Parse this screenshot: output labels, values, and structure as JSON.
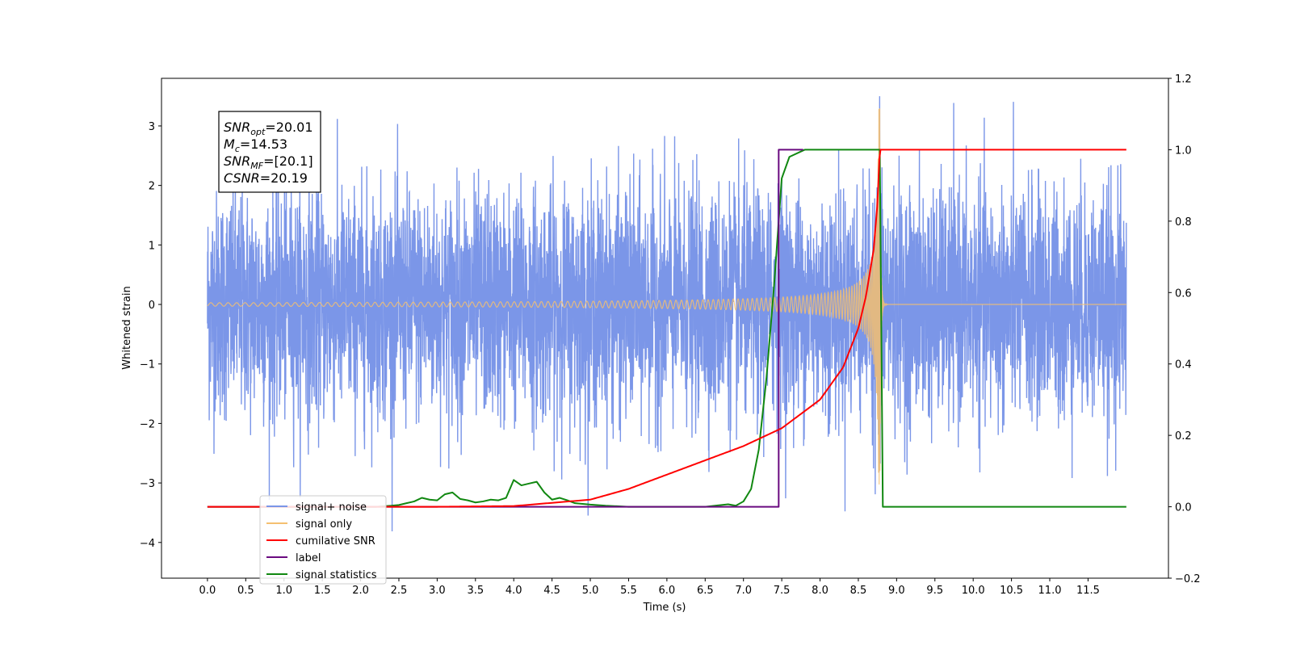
{
  "chart_data": {
    "type": "line",
    "title": "",
    "xlabel": "Time (s)",
    "ylabel": "Whitened strain",
    "y2label": "",
    "xlim": [
      -0.6,
      12.55
    ],
    "ylim": [
      -4.6,
      3.8
    ],
    "y2lim": [
      -0.2,
      1.2
    ],
    "x_ticks": [
      "0.0",
      "0.5",
      "1.0",
      "1.5",
      "2.0",
      "2.5",
      "3.0",
      "3.5",
      "4.0",
      "4.5",
      "5.0",
      "5.5",
      "6.0",
      "6.5",
      "7.0",
      "7.5",
      "8.0",
      "8.5",
      "9.0",
      "9.5",
      "10.0",
      "10.5",
      "11.0",
      "11.5"
    ],
    "y_ticks": [
      "3",
      "2",
      "1",
      "0",
      "−1",
      "−2",
      "−3",
      "−4"
    ],
    "y2_ticks": [
      "1.2",
      "1.0",
      "0.8",
      "0.6",
      "0.4",
      "0.2",
      "0.0",
      "−0.2"
    ],
    "legend_position": "lower-left",
    "annotation": [
      {
        "main": "SNR",
        "sub": "opt",
        "rest": "=20.01"
      },
      {
        "main": "M",
        "sub": "c",
        "rest": "=14.53"
      },
      {
        "main": "SNR",
        "sub": "MF",
        "rest": "=[20.1]"
      },
      {
        "main": "CSNR",
        "sub": "",
        "rest": "=20.19"
      }
    ],
    "series": [
      {
        "name": "signal+ noise",
        "color": "#7b96e8",
        "axis": "left",
        "description": "white noise, std ~0.95, over t=0..12",
        "noise_std": 0.95,
        "t_range": [
          0,
          12
        ]
      },
      {
        "name": "signal only",
        "color": "#f5c070",
        "axis": "left",
        "description": "chirp signal, amplitude grows to ~3.3 peaking at t=8.78, ringdown after",
        "merger_time": 8.78,
        "peak_amplitude": 3.3
      },
      {
        "name": "cumilative SNR",
        "color": "#ff0000",
        "axis": "right",
        "x": [
          0,
          3,
          4,
          5,
          5.5,
          6,
          6.5,
          7,
          7.5,
          8,
          8.3,
          8.5,
          8.6,
          8.7,
          8.75,
          8.78,
          12
        ],
        "y": [
          0,
          0,
          0.002,
          0.02,
          0.05,
          0.09,
          0.13,
          0.17,
          0.22,
          0.3,
          0.39,
          0.5,
          0.59,
          0.72,
          0.85,
          1.0,
          1.0
        ]
      },
      {
        "name": "label",
        "color": "#6a0a80",
        "axis": "right",
        "x": [
          0,
          7.46,
          7.46,
          7.78
        ],
        "y": [
          0,
          0,
          1.0,
          1.0
        ]
      },
      {
        "name": "signal statistics",
        "color": "#118811",
        "axis": "right",
        "x": [
          0,
          2.2,
          2.4,
          2.5,
          2.6,
          2.7,
          2.8,
          2.9,
          3.0,
          3.1,
          3.2,
          3.3,
          3.4,
          3.5,
          3.6,
          3.7,
          3.8,
          3.9,
          4.0,
          4.1,
          4.2,
          4.3,
          4.4,
          4.5,
          4.6,
          4.7,
          4.8,
          5.0,
          5.2,
          5.5,
          6.5,
          6.8,
          6.9,
          7.0,
          7.1,
          7.2,
          7.3,
          7.4,
          7.5,
          7.6,
          7.8,
          8.0,
          8.78,
          8.82,
          12
        ],
        "y": [
          0,
          0,
          0.003,
          0.005,
          0.01,
          0.015,
          0.025,
          0.02,
          0.018,
          0.035,
          0.04,
          0.022,
          0.018,
          0.012,
          0.015,
          0.02,
          0.018,
          0.025,
          0.075,
          0.06,
          0.065,
          0.07,
          0.04,
          0.02,
          0.025,
          0.018,
          0.01,
          0.006,
          0.003,
          0.0,
          0.0,
          0.007,
          0.003,
          0.015,
          0.05,
          0.16,
          0.36,
          0.62,
          0.92,
          0.98,
          1.0,
          1.0,
          1.0,
          0.0,
          0.0
        ]
      }
    ]
  }
}
